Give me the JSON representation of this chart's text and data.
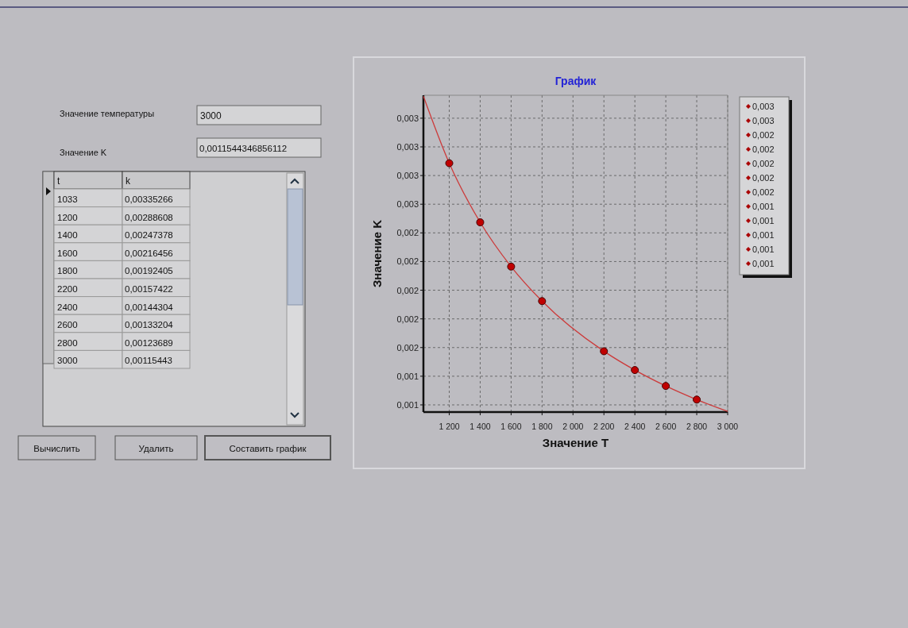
{
  "chart_data": [
    {
      "type": "line",
      "title": "График",
      "xlabel": "Значение T",
      "ylabel": "Значение K",
      "xlim": [
        1033,
        3000
      ],
      "ylim": [
        0.00115,
        0.00336
      ],
      "xticks": [
        {
          "value": 1200,
          "label": "1 200"
        },
        {
          "value": 1400,
          "label": "1 400"
        },
        {
          "value": 1600,
          "label": "1 600"
        },
        {
          "value": 1800,
          "label": "1 800"
        },
        {
          "value": 2000,
          "label": "2 000"
        },
        {
          "value": 2200,
          "label": "2 200"
        },
        {
          "value": 2400,
          "label": "2 400"
        },
        {
          "value": 2600,
          "label": "2 600"
        },
        {
          "value": 2800,
          "label": "2 800"
        },
        {
          "value": 3000,
          "label": "3 000"
        }
      ],
      "yticks": [
        {
          "value": 0.0012,
          "label": "0,001"
        },
        {
          "value": 0.0014,
          "label": "0,001"
        },
        {
          "value": 0.0016,
          "label": "0,002"
        },
        {
          "value": 0.0018,
          "label": "0,002"
        },
        {
          "value": 0.002,
          "label": "0,002"
        },
        {
          "value": 0.0022,
          "label": "0,002"
        },
        {
          "value": 0.0024,
          "label": "0,002"
        },
        {
          "value": 0.0026,
          "label": "0,003"
        },
        {
          "value": 0.0028,
          "label": "0,003"
        },
        {
          "value": 0.003,
          "label": "0,003"
        },
        {
          "value": 0.0032,
          "label": "0,003"
        }
      ],
      "grid": true,
      "series": [
        {
          "type": "line",
          "color": "#cc3b3b",
          "x": [
            1033,
            1200,
            1400,
            1600,
            1800,
            2200,
            2400,
            2600,
            2800,
            3000
          ],
          "values": [
            0.00335266,
            0.00288608,
            0.00247378,
            0.00216456,
            0.00192405,
            0.00157422,
            0.00144304,
            0.00133204,
            0.00123689,
            0.00115443
          ]
        },
        {
          "type": "scatter",
          "color": "#c00000",
          "marker": "circle",
          "x": [
            1200,
            1400,
            1600,
            1800,
            2200,
            2400,
            2600,
            2800
          ],
          "values": [
            0.00288608,
            0.00247378,
            0.00216456,
            0.00192405,
            0.00157422,
            0.00144304,
            0.00133204,
            0.00123689
          ]
        }
      ],
      "annotations": [
        "0,003",
        "0,003",
        "0,002",
        "0,002",
        "0,002",
        "0,002",
        "0,002",
        "0,001",
        "0,001",
        "0,001",
        "0,001",
        "0,001"
      ]
    },
    {
      "type": "other",
      "annotations": [
        "Значение температуры",
        "3000",
        "Значение K",
        "0,0011544346856112",
        "t",
        "k",
        "1033",
        "0,00335266",
        "1200",
        "0,00288608",
        "1400",
        "0,00247378",
        "1600",
        "0,00216456",
        "1800",
        "0,00192405",
        "2200",
        "0,00157422",
        "2400",
        "0,00144304",
        "2600",
        "0,00133204",
        "2800",
        "0,00123689",
        "3000",
        "0,00115443",
        "Вычислить",
        "Удалить",
        "Составить график"
      ]
    }
  ]
}
